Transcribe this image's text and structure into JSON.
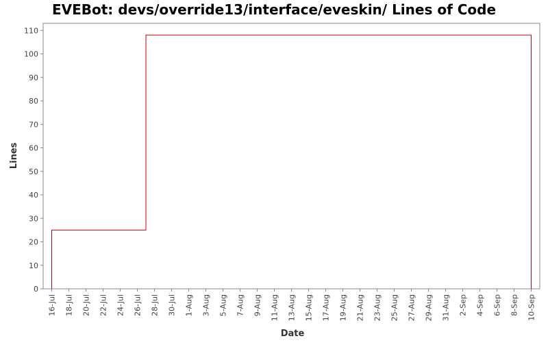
{
  "chart_data": {
    "type": "line",
    "title": "EVEBot: devs/override13/interface/eveskin/ Lines of Code",
    "xlabel": "Date",
    "ylabel": "Lines",
    "x_tick_labels": [
      "16-Jul",
      "18-Jul",
      "20-Jul",
      "22-Jul",
      "24-Jul",
      "26-Jul",
      "28-Jul",
      "30-Jul",
      "1-Aug",
      "3-Aug",
      "5-Aug",
      "7-Aug",
      "9-Aug",
      "11-Aug",
      "13-Aug",
      "15-Aug",
      "17-Aug",
      "19-Aug",
      "21-Aug",
      "23-Aug",
      "25-Aug",
      "27-Aug",
      "29-Aug",
      "31-Aug",
      "2-Sep",
      "4-Sep",
      "6-Sep",
      "8-Sep",
      "10-Sep"
    ],
    "y_ticks": [
      0,
      10,
      20,
      30,
      40,
      50,
      60,
      70,
      80,
      90,
      100,
      110
    ],
    "ylim": [
      0,
      113
    ],
    "xlim": [
      "2023-07-15",
      "2023-09-11"
    ],
    "grid": false,
    "step": true,
    "series": [
      {
        "color": "#cc0000",
        "x": [
          "2023-07-16",
          "2023-07-27",
          "2023-09-10"
        ],
        "values": [
          25,
          108,
          108
        ]
      }
    ]
  }
}
